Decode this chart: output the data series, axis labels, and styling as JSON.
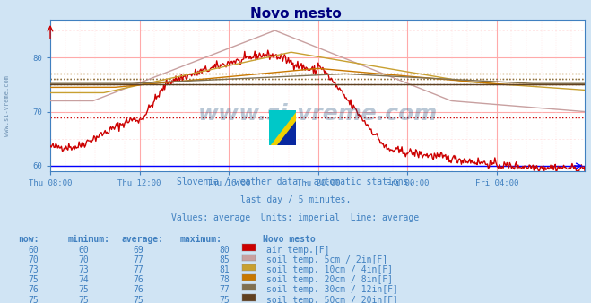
{
  "title": "Novo mesto",
  "title_color": "#000080",
  "bg_color": "#d0e4f4",
  "plot_bg_color": "#ffffff",
  "grid_color_major": "#ffaaaa",
  "grid_color_minor": "#ffdddd",
  "tick_color": "#4080c0",
  "ylabel_range": [
    59,
    87
  ],
  "yticks": [
    60,
    70,
    80
  ],
  "xtick_labels": [
    "Thu 08:00",
    "Thu 12:00",
    "Thu 16:00",
    "Thu 20:00",
    "Fri 00:00",
    "Fri 04:00"
  ],
  "xtick_positions": [
    0,
    96,
    192,
    288,
    384,
    480
  ],
  "n_points": 576,
  "watermark_text": "www.si-vreme.com",
  "subtitle1": "Slovenia / weather data - automatic stations.",
  "subtitle2": "last day / 5 minutes.",
  "subtitle3": "Values: average  Units: imperial  Line: average",
  "subtitle_color": "#4080c0",
  "legend_data": [
    {
      "now": 60,
      "min": 60,
      "avg": 69,
      "max": 80,
      "color": "#cc0000",
      "label": "air temp.[F]"
    },
    {
      "now": 70,
      "min": 70,
      "avg": 77,
      "max": 85,
      "color": "#c8a0a0",
      "label": "soil temp. 5cm / 2in[F]"
    },
    {
      "now": 73,
      "min": 73,
      "avg": 77,
      "max": 81,
      "color": "#c8a030",
      "label": "soil temp. 10cm / 4in[F]"
    },
    {
      "now": 75,
      "min": 74,
      "avg": 76,
      "max": 78,
      "color": "#c87800",
      "label": "soil temp. 20cm / 8in[F]"
    },
    {
      "now": 76,
      "min": 75,
      "avg": 76,
      "max": 77,
      "color": "#807050",
      "label": "soil temp. 30cm / 12in[F]"
    },
    {
      "now": 75,
      "min": 75,
      "avg": 75,
      "max": 75,
      "color": "#604020",
      "label": "soil temp. 50cm / 20in[F]"
    }
  ],
  "avg_line_color": "#0000ff",
  "avg_line_y": 60,
  "watermark_color": "#1a4a7a"
}
